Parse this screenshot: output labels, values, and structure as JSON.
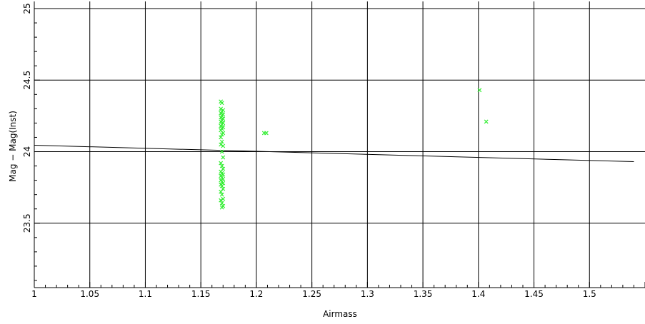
{
  "chart_data": {
    "type": "scatter",
    "xlabel": "Airmass",
    "ylabel": "Mag − Mag(Inst)",
    "xlim": [
      1.0,
      1.55
    ],
    "ylim": [
      23.05,
      25.05
    ],
    "xticks": [
      1,
      1.05,
      1.1,
      1.15,
      1.2,
      1.25,
      1.3,
      1.35,
      1.4,
      1.45,
      1.5
    ],
    "xtick_labels": [
      "1",
      "1.05",
      "1.1",
      "1.15",
      "1.2",
      "1.25",
      "1.3",
      "1.35",
      "1.4",
      "1.45",
      "1.5"
    ],
    "yticks": [
      23.5,
      24,
      24.5,
      25
    ],
    "ytick_labels": [
      "23.5",
      "24",
      "24.5",
      "25"
    ],
    "grid": true,
    "marker_color": "#33ee33",
    "fit_line": {
      "x": [
        1.0,
        1.54
      ],
      "y": [
        24.045,
        23.93
      ]
    },
    "series": [
      {
        "marker": "x",
        "points": [
          [
            1.168,
            24.35
          ],
          [
            1.169,
            24.34
          ],
          [
            1.168,
            24.3
          ],
          [
            1.17,
            24.29
          ],
          [
            1.169,
            24.28
          ],
          [
            1.168,
            24.27
          ],
          [
            1.17,
            24.26
          ],
          [
            1.169,
            24.25
          ],
          [
            1.168,
            24.24
          ],
          [
            1.17,
            24.23
          ],
          [
            1.169,
            24.22
          ],
          [
            1.168,
            24.21
          ],
          [
            1.17,
            24.2
          ],
          [
            1.169,
            24.19
          ],
          [
            1.168,
            24.18
          ],
          [
            1.17,
            24.17
          ],
          [
            1.169,
            24.16
          ],
          [
            1.168,
            24.15
          ],
          [
            1.17,
            24.13
          ],
          [
            1.169,
            24.12
          ],
          [
            1.168,
            24.1
          ],
          [
            1.169,
            24.07
          ],
          [
            1.168,
            24.05
          ],
          [
            1.17,
            24.04
          ],
          [
            1.169,
            24.0
          ],
          [
            1.17,
            23.96
          ],
          [
            1.168,
            23.92
          ],
          [
            1.169,
            23.9
          ],
          [
            1.17,
            23.88
          ],
          [
            1.168,
            23.86
          ],
          [
            1.169,
            23.85
          ],
          [
            1.17,
            23.84
          ],
          [
            1.168,
            23.83
          ],
          [
            1.169,
            23.82
          ],
          [
            1.17,
            23.81
          ],
          [
            1.168,
            23.8
          ],
          [
            1.169,
            23.79
          ],
          [
            1.17,
            23.78
          ],
          [
            1.168,
            23.77
          ],
          [
            1.169,
            23.76
          ],
          [
            1.17,
            23.74
          ],
          [
            1.168,
            23.72
          ],
          [
            1.169,
            23.7
          ],
          [
            1.17,
            23.67
          ],
          [
            1.168,
            23.66
          ],
          [
            1.169,
            23.64
          ],
          [
            1.17,
            23.62
          ],
          [
            1.169,
            23.61
          ],
          [
            1.207,
            24.13
          ],
          [
            1.209,
            24.13
          ],
          [
            1.401,
            24.43
          ],
          [
            1.407,
            24.21
          ]
        ]
      }
    ]
  }
}
